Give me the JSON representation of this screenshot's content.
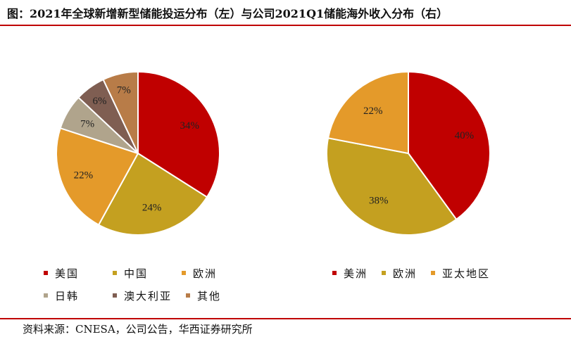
{
  "title": "图：2021年全球新增新型储能投运分布（左）与公司2021Q1储能海外收入分布（右）",
  "source": "资料来源：CNESA，公司公告，华西证券研究所",
  "chart_data": [
    {
      "type": "pie",
      "title": "",
      "categories": [
        "美国",
        "中国",
        "欧洲",
        "日韩",
        "澳大利亚",
        "其他"
      ],
      "values": [
        34,
        24,
        22,
        7,
        6,
        7
      ],
      "labels": [
        "34%",
        "24%",
        "22%",
        "7%",
        "6%",
        "7%"
      ],
      "colors": [
        "#c00000",
        "#c4a020",
        "#e49a2a",
        "#b0a48c",
        "#7f5e52",
        "#b87c48"
      ],
      "start_angle_deg": 0,
      "direction": "clockwise",
      "legend_placement": "bottom"
    },
    {
      "type": "pie",
      "title": "",
      "categories": [
        "美洲",
        "欧洲",
        "亚太地区"
      ],
      "values": [
        40,
        38,
        22
      ],
      "labels": [
        "40%",
        "38%",
        "22%"
      ],
      "colors": [
        "#c00000",
        "#c4a020",
        "#e49a2a"
      ],
      "start_angle_deg": 0,
      "direction": "clockwise",
      "legend_placement": "bottom"
    }
  ]
}
